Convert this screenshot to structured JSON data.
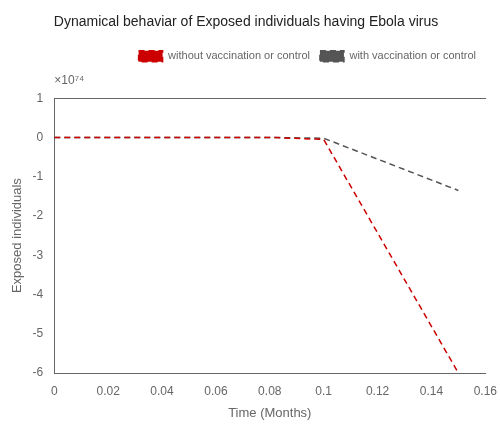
{
  "chart_data": {
    "type": "line",
    "title": "Dynamical behaviar of Exposed individuals having Ebola virus",
    "xlabel": "Time (Months)",
    "ylabel": "Exposed individuals",
    "annotation": "×10⁷⁴",
    "x": [
      0,
      0.08,
      0.1,
      0.15
    ],
    "series": [
      {
        "name": "without vaccination or control",
        "color": "#cc0000",
        "line_style": "dashed",
        "marker": "none",
        "values": [
          0,
          0,
          -0.05,
          -6.0
        ]
      },
      {
        "name": "with vaccination or control",
        "color": "#555555",
        "line_style": "dashed",
        "marker": "none",
        "values": [
          0,
          0,
          -0.02,
          -1.35
        ]
      }
    ],
    "xlim": [
      0,
      0.16
    ],
    "ylim": [
      -6,
      1
    ],
    "xticks": [
      0,
      0.02,
      0.04,
      0.06,
      0.08,
      0.1,
      0.12,
      0.14,
      0.16
    ],
    "yticks": [
      -6,
      -5,
      -4,
      -3,
      -2,
      -1,
      0,
      1
    ],
    "grid": false,
    "legend": "upper right"
  }
}
